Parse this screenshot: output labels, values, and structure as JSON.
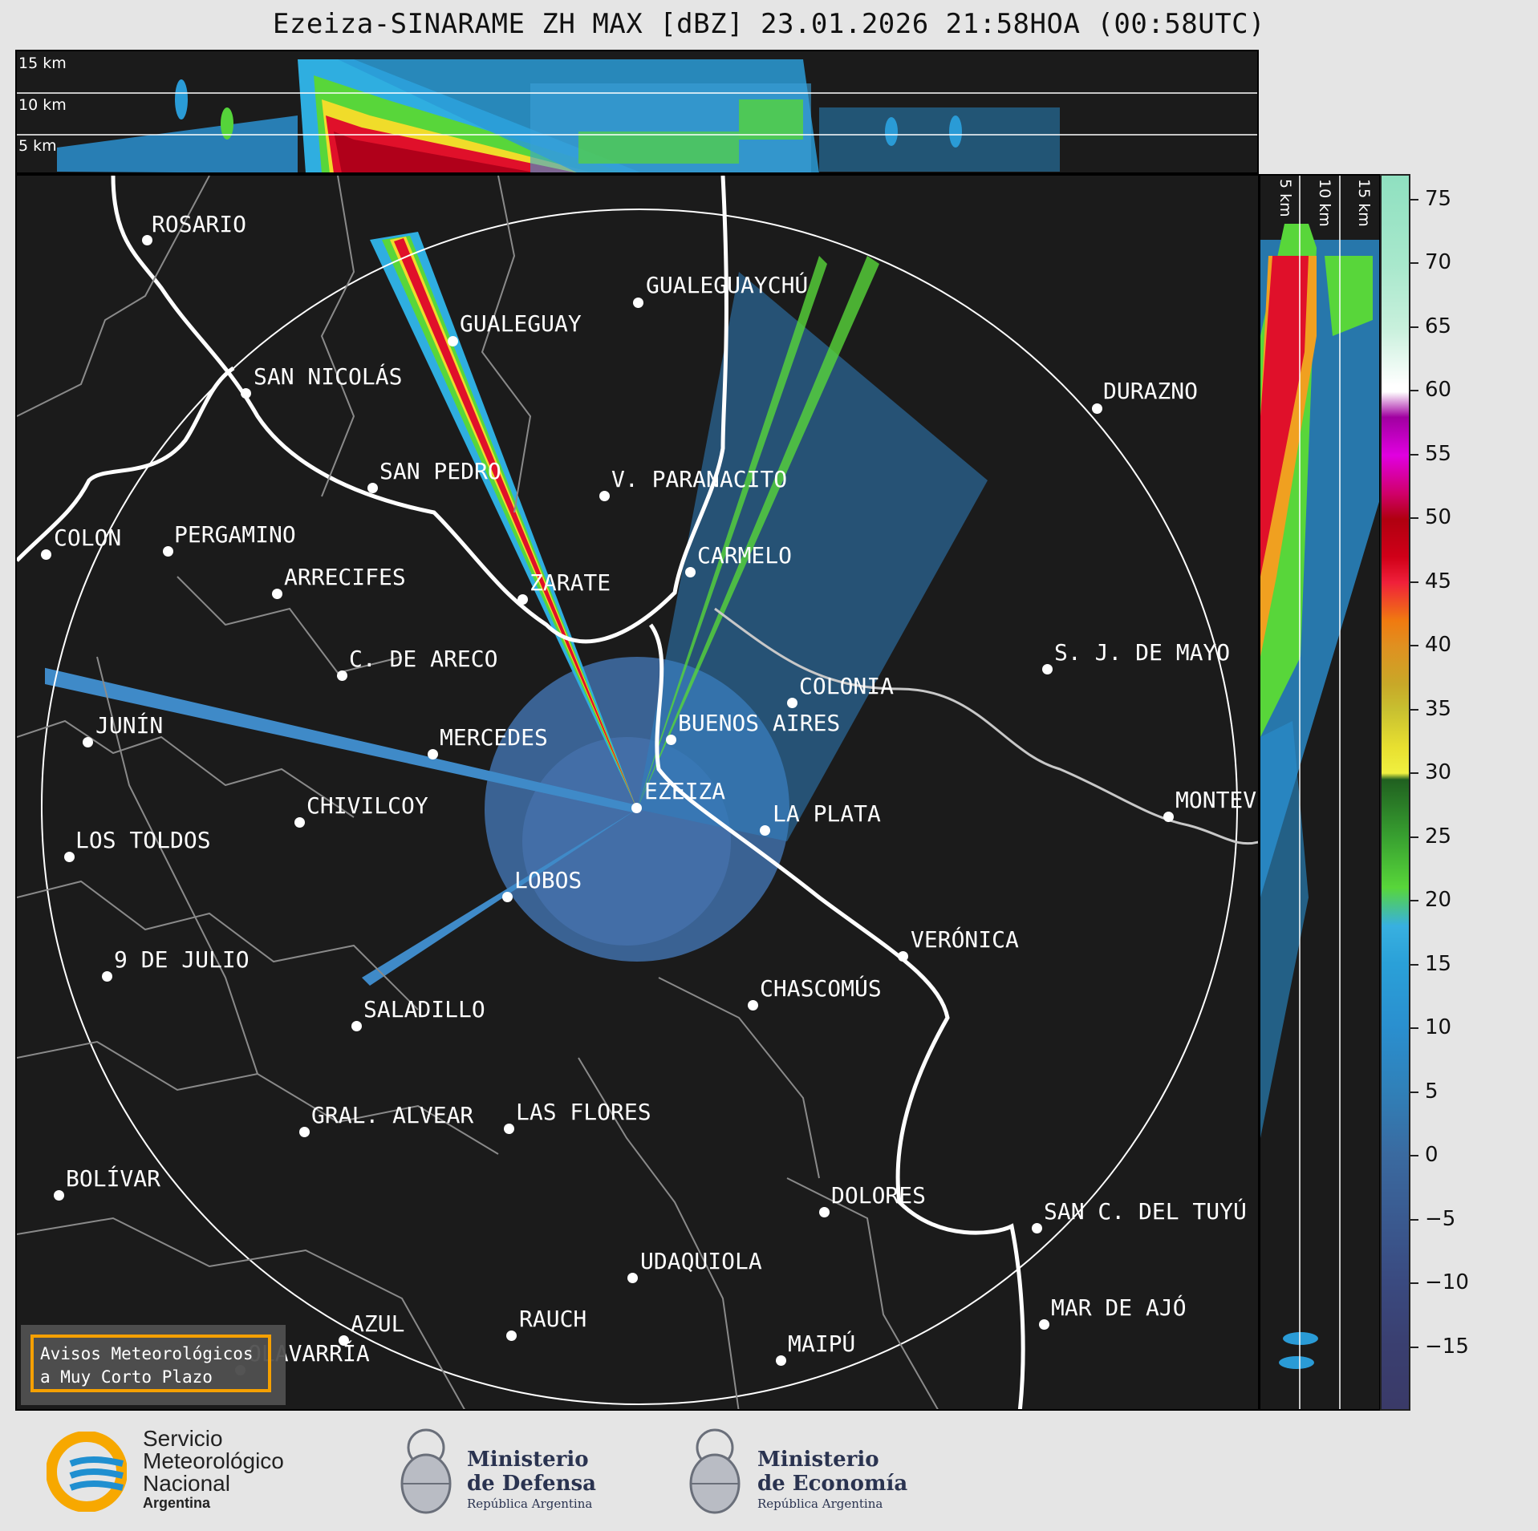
{
  "title": "Ezeiza-SINARAME ZH MAX [dBZ] 23.01.2026 21:58HOA (00:58UTC)",
  "height_labels": {
    "h15": "15 km",
    "h10": "10 km",
    "h5": "5 km"
  },
  "side_labels": {
    "h5": "5 km",
    "h10": "10 km",
    "h15": "15 km"
  },
  "cities": [
    {
      "key": "rosario",
      "name": "ROSARIO"
    },
    {
      "key": "gualeguaychu",
      "name": "GUALEGUAYCHÚ"
    },
    {
      "key": "gualeguay",
      "name": "GUALEGUAY"
    },
    {
      "key": "san_nicolas",
      "name": "SAN NICOLÁS"
    },
    {
      "key": "durazno",
      "name": "DURAZNO"
    },
    {
      "key": "san_pedro",
      "name": "SAN PEDRO"
    },
    {
      "key": "paranacito",
      "name": "V. PARANACITO"
    },
    {
      "key": "colon",
      "name": "COLON"
    },
    {
      "key": "pergamino",
      "name": "PERGAMINO"
    },
    {
      "key": "carmelo",
      "name": "CARMELO"
    },
    {
      "key": "arrecifes",
      "name": "ARRECIFES"
    },
    {
      "key": "zarate",
      "name": "ZARATE"
    },
    {
      "key": "sj_mayo",
      "name": "S. J. DE MAYO"
    },
    {
      "key": "c_areco",
      "name": "C. DE ARECO"
    },
    {
      "key": "colonia",
      "name": "COLONIA"
    },
    {
      "key": "junin",
      "name": "JUNÍN"
    },
    {
      "key": "buenos_aires",
      "name": "BUENOS AIRES"
    },
    {
      "key": "mercedes",
      "name": "MERCEDES"
    },
    {
      "key": "ezeiza",
      "name": "EZEIZA"
    },
    {
      "key": "montevideo",
      "name": "MONTEV"
    },
    {
      "key": "chivilcoy",
      "name": "CHIVILCOY"
    },
    {
      "key": "la_plata",
      "name": "LA PLATA"
    },
    {
      "key": "los_toldos",
      "name": "LOS TOLDOS"
    },
    {
      "key": "lobos",
      "name": "LOBOS"
    },
    {
      "key": "veronica",
      "name": "VERÓNICA"
    },
    {
      "key": "nueve_julio",
      "name": "9 DE JULIO"
    },
    {
      "key": "chascomus",
      "name": "CHASCOMÚS"
    },
    {
      "key": "saladillo",
      "name": "SALADILLO"
    },
    {
      "key": "gral_alvear",
      "name": "GRAL. ALVEAR"
    },
    {
      "key": "las_flores",
      "name": "LAS FLORES"
    },
    {
      "key": "bolivar",
      "name": "BOLÍVAR"
    },
    {
      "key": "dolores",
      "name": "DOLORES"
    },
    {
      "key": "san_c_tuyu",
      "name": "SAN C. DEL TUYÚ"
    },
    {
      "key": "udaquiola",
      "name": "UDAQUIOLA"
    },
    {
      "key": "azul",
      "name": "AZUL"
    },
    {
      "key": "rauch",
      "name": "RAUCH"
    },
    {
      "key": "mar_ajo",
      "name": "MAR DE AJÓ"
    },
    {
      "key": "maipu",
      "name": "MAIPÚ"
    },
    {
      "key": "olavarria",
      "name": "OLAVARRÍA"
    }
  ],
  "colorbar": {
    "unit": "dBZ",
    "ticks": [
      "75",
      "70",
      "65",
      "60",
      "55",
      "50",
      "45",
      "40",
      "35",
      "30",
      "25",
      "20",
      "15",
      "10",
      "5",
      "0",
      "−5",
      "−10",
      "−15"
    ],
    "min": -20,
    "max": 77
  },
  "warning": {
    "line1": "Avisos Meteorológicos",
    "line2": "a Muy Corto Plazo"
  },
  "footer": {
    "smn_line1": "Servicio",
    "smn_line2": "Meteorológico",
    "smn_line3": "Nacional",
    "smn_line4": "Argentina",
    "defensa_line1": "Ministerio",
    "defensa_line2": "de Defensa",
    "defensa_line3": "República Argentina",
    "economia_line1": "Ministerio",
    "economia_line2": "de Economía",
    "economia_line3": "República Argentina"
  },
  "colors": {
    "background": "#1b1b1b",
    "accent": "#f5a000",
    "smn_blue": "#1f8fd0",
    "smn_yellow": "#f7a800"
  }
}
